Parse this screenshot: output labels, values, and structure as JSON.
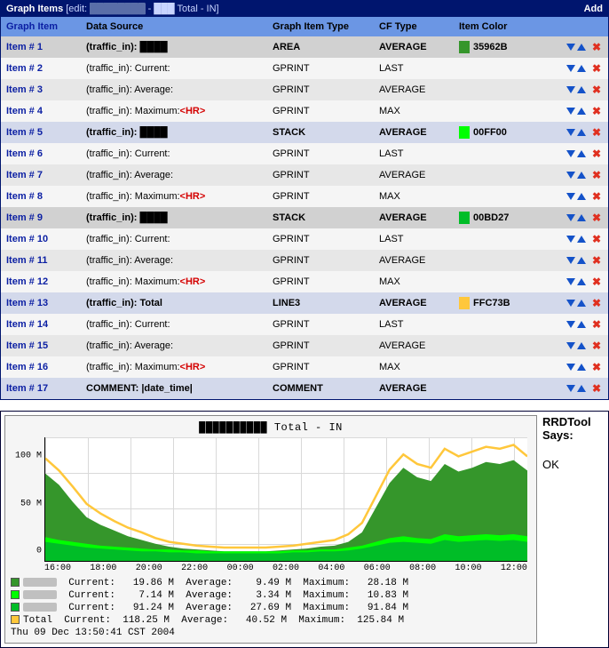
{
  "header": {
    "title_prefix": "Graph Items",
    "title_edit": "[edit:",
    "title_suffix": " - ███ Total - IN]",
    "add_label": "Add"
  },
  "columns": {
    "item": "Graph Item",
    "ds": "Data Source",
    "type": "Graph Item Type",
    "cf": "CF Type",
    "color": "Item Color"
  },
  "rows": [
    {
      "n": 1,
      "kind": "head1",
      "label": "Item # 1",
      "ds": "(traffic_in): ████",
      "type": "AREA",
      "cf": "AVERAGE",
      "color": "#35962B",
      "color_label": "35962B"
    },
    {
      "n": 2,
      "kind": "odd",
      "label": "Item # 2",
      "ds": "(traffic_in): Current:",
      "type": "GPRINT",
      "cf": "LAST"
    },
    {
      "n": 3,
      "kind": "even",
      "label": "Item # 3",
      "ds": "(traffic_in): Average:",
      "type": "GPRINT",
      "cf": "AVERAGE"
    },
    {
      "n": 4,
      "kind": "odd",
      "label": "Item # 4",
      "ds": "(traffic_in): Maximum:",
      "hr": true,
      "type": "GPRINT",
      "cf": "MAX"
    },
    {
      "n": 5,
      "kind": "head5",
      "label": "Item # 5",
      "ds": "(traffic_in): ████",
      "type": "STACK",
      "cf": "AVERAGE",
      "color": "#00FF00",
      "color_label": "00FF00"
    },
    {
      "n": 6,
      "kind": "odd",
      "label": "Item # 6",
      "ds": "(traffic_in): Current:",
      "type": "GPRINT",
      "cf": "LAST"
    },
    {
      "n": 7,
      "kind": "even",
      "label": "Item # 7",
      "ds": "(traffic_in): Average:",
      "type": "GPRINT",
      "cf": "AVERAGE"
    },
    {
      "n": 8,
      "kind": "odd",
      "label": "Item # 8",
      "ds": "(traffic_in): Maximum:",
      "hr": true,
      "type": "GPRINT",
      "cf": "MAX"
    },
    {
      "n": 9,
      "kind": "head9",
      "label": "Item # 9",
      "ds": "(traffic_in): ████",
      "type": "STACK",
      "cf": "AVERAGE",
      "color": "#00BD27",
      "color_label": "00BD27"
    },
    {
      "n": 10,
      "kind": "odd",
      "label": "Item # 10",
      "ds": "(traffic_in): Current:",
      "type": "GPRINT",
      "cf": "LAST"
    },
    {
      "n": 11,
      "kind": "even",
      "label": "Item # 11",
      "ds": "(traffic_in): Average:",
      "type": "GPRINT",
      "cf": "AVERAGE"
    },
    {
      "n": 12,
      "kind": "odd",
      "label": "Item # 12",
      "ds": "(traffic_in): Maximum:",
      "hr": true,
      "type": "GPRINT",
      "cf": "MAX"
    },
    {
      "n": 13,
      "kind": "head13",
      "label": "Item # 13",
      "ds": "(traffic_in): Total",
      "type": "LINE3",
      "cf": "AVERAGE",
      "color": "#FFC73B",
      "color_label": "FFC73B"
    },
    {
      "n": 14,
      "kind": "odd",
      "label": "Item # 14",
      "ds": "(traffic_in): Current:",
      "type": "GPRINT",
      "cf": "LAST"
    },
    {
      "n": 15,
      "kind": "even",
      "label": "Item # 15",
      "ds": "(traffic_in): Average:",
      "type": "GPRINT",
      "cf": "AVERAGE"
    },
    {
      "n": 16,
      "kind": "odd",
      "label": "Item # 16",
      "ds": "(traffic_in): Maximum:",
      "hr": true,
      "type": "GPRINT",
      "cf": "MAX"
    },
    {
      "n": 17,
      "kind": "last",
      "label": "Item # 17",
      "ds": "COMMENT: |date_time|",
      "type": "COMMENT",
      "cf": "AVERAGE"
    }
  ],
  "graph": {
    "title": "██████████ Total - IN",
    "y_ticks": [
      {
        "v": 0,
        "l": "0"
      },
      {
        "v": 50,
        "l": "50 M"
      },
      {
        "v": 100,
        "l": "100 M"
      }
    ],
    "y_max": 130,
    "x_ticks": [
      "16:00",
      "18:00",
      "20:00",
      "22:00",
      "00:00",
      "02:00",
      "04:00",
      "06:00",
      "08:00",
      "10:00",
      "12:00"
    ],
    "colors": {
      "area1": "#35962B",
      "area2": "#00FF00",
      "area3": "#00BD27",
      "total": "#FFC73B",
      "bg": "#ffffff",
      "grid": "#d9d9d9"
    },
    "series_total": [
      108,
      95,
      78,
      60,
      50,
      42,
      35,
      30,
      24,
      20,
      18,
      16,
      15,
      14,
      14,
      14,
      14,
      15,
      16,
      18,
      20,
      22,
      28,
      40,
      68,
      96,
      112,
      102,
      98,
      118,
      110,
      115,
      120,
      118,
      122,
      110
    ],
    "series_s1": [
      92,
      80,
      62,
      46,
      38,
      32,
      26,
      22,
      18,
      15,
      13,
      12,
      11,
      10,
      10,
      10,
      10,
      11,
      12,
      13,
      15,
      16,
      20,
      30,
      56,
      82,
      98,
      88,
      84,
      102,
      94,
      98,
      104,
      102,
      106,
      95
    ],
    "series_s2": [
      25,
      22,
      20,
      18,
      16,
      15,
      14,
      13,
      12,
      12,
      11,
      11,
      10,
      10,
      10,
      10,
      10,
      10,
      11,
      11,
      12,
      12,
      14,
      16,
      20,
      24,
      26,
      24,
      23,
      28,
      26,
      27,
      28,
      27,
      28,
      26
    ],
    "series_s3": [
      20,
      18,
      16,
      14,
      13,
      12,
      11,
      10,
      10,
      9,
      9,
      8,
      8,
      8,
      8,
      8,
      8,
      8,
      9,
      9,
      10,
      10,
      11,
      13,
      16,
      19,
      20,
      19,
      18,
      22,
      20,
      21,
      22,
      21,
      22,
      20
    ],
    "legend_rows": [
      {
        "sw": "#35962B",
        "name": "████",
        "cur": "19.86 M",
        "avg": "9.49 M",
        "max": "28.18 M"
      },
      {
        "sw": "#00FF00",
        "name": "████",
        "cur": "7.14 M",
        "avg": "3.34 M",
        "max": "10.83 M"
      },
      {
        "sw": "#00BD27",
        "name": "████",
        "cur": "91.24 M",
        "avg": "27.69 M",
        "max": "91.84 M"
      },
      {
        "sw": "#FFC73B",
        "name": "Total",
        "cur": "118.25 M",
        "avg": "40.52 M",
        "max": "125.84 M"
      }
    ],
    "timestamp": "Thu 09 Dec 13:50:41 CST 2004"
  },
  "side": {
    "label": "RRDTool Says:",
    "status": "OK"
  }
}
